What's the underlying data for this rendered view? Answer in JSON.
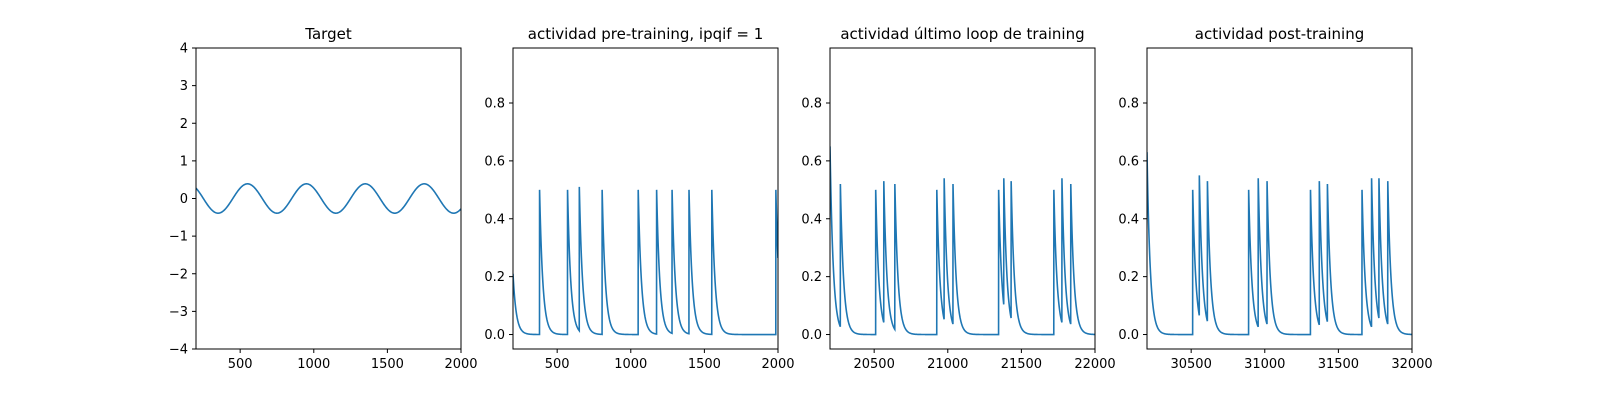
{
  "colors": {
    "line": "#1f77b4",
    "axes": "#000000",
    "background": "#ffffff"
  },
  "chart_data": [
    {
      "type": "line",
      "title": "Target",
      "xlim": [
        200,
        2000
      ],
      "ylim": [
        -4,
        4
      ],
      "xticks": [
        500,
        1000,
        1500,
        2000
      ],
      "yticks": [
        -4,
        -3,
        -2,
        -1,
        0,
        1,
        2,
        3,
        4
      ],
      "xlabel": "",
      "ylabel": "",
      "grid": false,
      "series": [
        {
          "kind": "sine",
          "amplitude": 0.39,
          "period": 400,
          "x_start": 200,
          "x_end": 2000,
          "y_at_start": 0.28,
          "first_peak_x": 550
        }
      ]
    },
    {
      "type": "line",
      "title": "actividad pre-training, ipqif = 1",
      "xlim": [
        200,
        2000
      ],
      "ylim": [
        -0.05,
        0.99
      ],
      "xticks": [
        500,
        1000,
        1500,
        2000
      ],
      "yticks": [
        0.0,
        0.2,
        0.4,
        0.6,
        0.8
      ],
      "xlabel": "",
      "ylabel": "",
      "grid": false,
      "series": [
        {
          "kind": "spikes",
          "decay_tau": 22,
          "initial": 0.21,
          "spikes": [
            [
              380,
              0.5
            ],
            [
              570,
              0.5
            ],
            [
              650,
              0.51
            ],
            [
              805,
              0.5
            ],
            [
              1050,
              0.5
            ],
            [
              1175,
              0.5
            ],
            [
              1280,
              0.5
            ],
            [
              1395,
              0.5
            ],
            [
              1550,
              0.5
            ],
            [
              1985,
              0.5
            ]
          ]
        }
      ]
    },
    {
      "type": "line",
      "title": "actividad último loop de training",
      "xlim": [
        20200,
        22000
      ],
      "ylim": [
        -0.05,
        0.99
      ],
      "xticks": [
        20500,
        21000,
        21500,
        22000
      ],
      "yticks": [
        0.0,
        0.2,
        0.4,
        0.6,
        0.8
      ],
      "xlabel": "",
      "ylabel": "",
      "grid": false,
      "series": [
        {
          "kind": "spikes",
          "decay_tau": 22,
          "initial": 0.65,
          "spikes": [
            [
              20270,
              0.52
            ],
            [
              20510,
              0.5
            ],
            [
              20565,
              0.53
            ],
            [
              20640,
              0.52
            ],
            [
              20925,
              0.5
            ],
            [
              20975,
              0.54
            ],
            [
              21035,
              0.52
            ],
            [
              21345,
              0.5
            ],
            [
              21380,
              0.54
            ],
            [
              21430,
              0.53
            ],
            [
              21720,
              0.5
            ],
            [
              21775,
              0.54
            ],
            [
              21835,
              0.52
            ]
          ]
        }
      ]
    },
    {
      "type": "line",
      "title": "actividad post-training",
      "xlim": [
        30200,
        32000
      ],
      "ylim": [
        -0.05,
        0.99
      ],
      "xticks": [
        30500,
        31000,
        31500,
        32000
      ],
      "yticks": [
        0.0,
        0.2,
        0.4,
        0.6,
        0.8
      ],
      "xlabel": "",
      "ylabel": "",
      "grid": false,
      "series": [
        {
          "kind": "spikes",
          "decay_tau": 22,
          "initial": 0.63,
          "spikes": [
            [
              30510,
              0.5
            ],
            [
              30555,
              0.55
            ],
            [
              30610,
              0.53
            ],
            [
              30890,
              0.5
            ],
            [
              30955,
              0.54
            ],
            [
              31015,
              0.53
            ],
            [
              31310,
              0.5
            ],
            [
              31370,
              0.53
            ],
            [
              31425,
              0.52
            ],
            [
              31660,
              0.5
            ],
            [
              31725,
              0.54
            ],
            [
              31775,
              0.54
            ],
            [
              31835,
              0.53
            ]
          ]
        }
      ]
    }
  ]
}
